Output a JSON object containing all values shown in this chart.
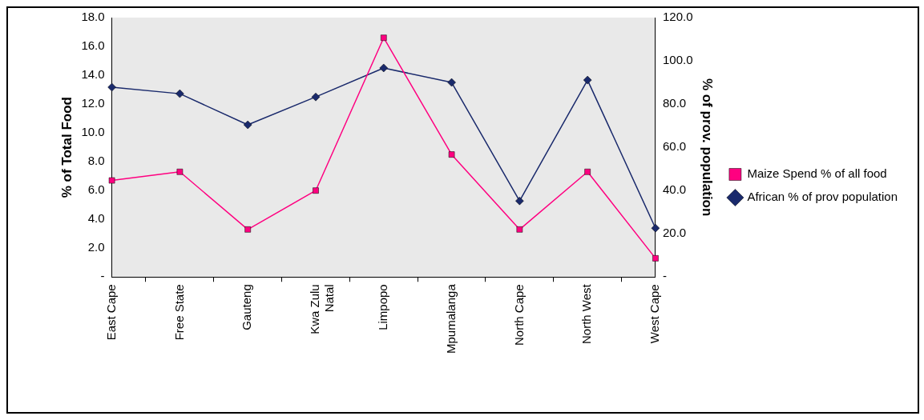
{
  "chart_data": {
    "type": "line",
    "categories": [
      "East Cape",
      "Free State",
      "Gauteng",
      "Kwa Zulu Natal",
      "Limpopo",
      "Mpumalanga",
      "North Cape",
      "North West",
      "West Cape"
    ],
    "ylabel": "% of Total Food",
    "y2label": "% of prov. population",
    "ylim": [
      0,
      18
    ],
    "yticks": [
      {
        "value": 0,
        "label": "-"
      },
      {
        "value": 2,
        "label": "2.0"
      },
      {
        "value": 4,
        "label": "4.0"
      },
      {
        "value": 6,
        "label": "6.0"
      },
      {
        "value": 8,
        "label": "8.0"
      },
      {
        "value": 10,
        "label": "10.0"
      },
      {
        "value": 12,
        "label": "12.0"
      },
      {
        "value": 14,
        "label": "14.0"
      },
      {
        "value": 16,
        "label": "16.0"
      },
      {
        "value": 18,
        "label": "18.0"
      }
    ],
    "y2lim": [
      0,
      120
    ],
    "y2ticks": [
      {
        "value": 0,
        "label": "-"
      },
      {
        "value": 20,
        "label": "20.0"
      },
      {
        "value": 40,
        "label": "40.0"
      },
      {
        "value": 60,
        "label": "60.0"
      },
      {
        "value": 80,
        "label": "80.0"
      },
      {
        "value": 100,
        "label": "100.0"
      },
      {
        "value": 120,
        "label": "120.0"
      }
    ],
    "grid": false,
    "legend": "right",
    "line_style": "solid",
    "series": [
      {
        "name": "Maize Spend % of all food",
        "color": "#ff0080",
        "marker": "square",
        "values": [
          6.7,
          7.3,
          3.3,
          6.0,
          16.6,
          8.5,
          3.3,
          7.3,
          1.3
        ]
      },
      {
        "name": "African % of prov population",
        "color": "#1a2a6c",
        "marker": "diamond",
        "axis": "y2",
        "values": [
          87.8,
          84.8,
          70.4,
          83.3,
          96.7,
          90.0,
          35.2,
          91.1,
          22.6
        ]
      }
    ]
  }
}
